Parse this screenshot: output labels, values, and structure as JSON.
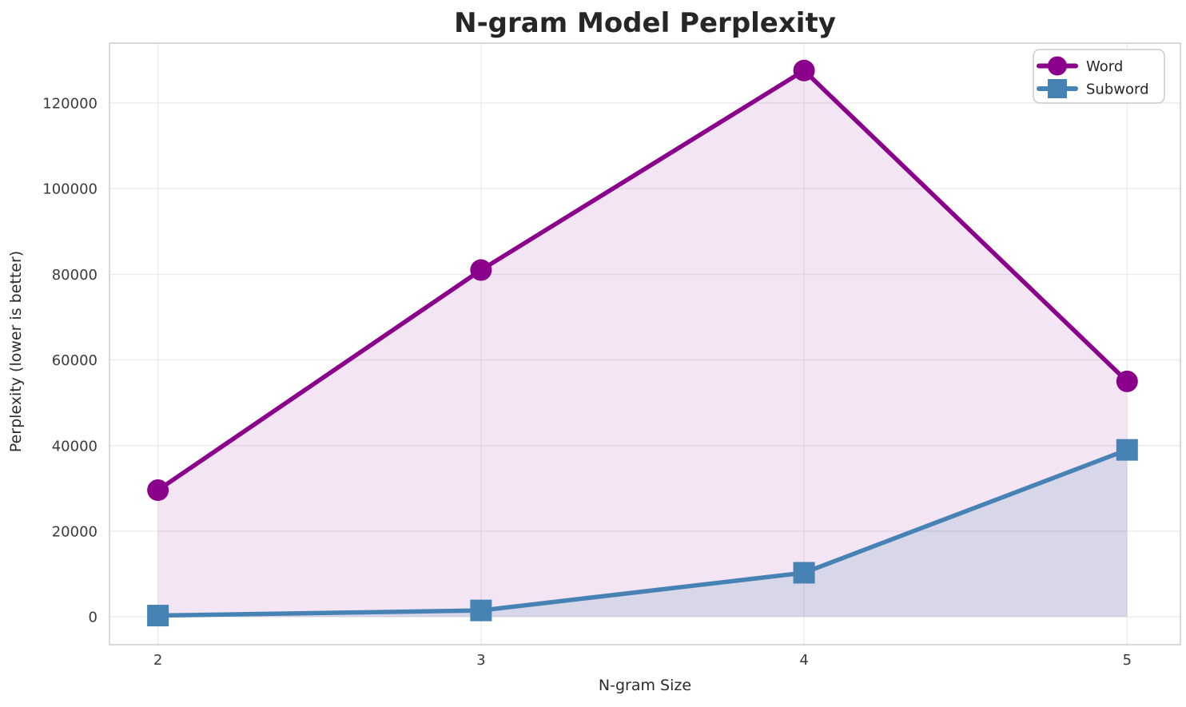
{
  "figure": {
    "background": "#ffffff"
  },
  "chart_data": {
    "type": "line",
    "title": "N-gram Model Perplexity",
    "xlabel": "N-gram Size",
    "ylabel": "Perplexity (lower is better)",
    "x": [
      2,
      3,
      4,
      5
    ],
    "series": [
      {
        "name": "Word",
        "values": [
          29600,
          81000,
          127600,
          55000
        ],
        "color": "#8B008B",
        "marker": "circle",
        "fill_opacity": 0.1
      },
      {
        "name": "Subword",
        "values": [
          300,
          1500,
          10300,
          39000
        ],
        "color": "#4682B4",
        "marker": "square",
        "fill_opacity": 0.15
      }
    ],
    "xticks": [
      2,
      3,
      4,
      5
    ],
    "xtick_labels": [
      "2",
      "3",
      "4",
      "5"
    ],
    "yticks": [
      0,
      20000,
      40000,
      60000,
      80000,
      100000,
      120000
    ],
    "ytick_labels": [
      "0",
      "20000",
      "40000",
      "60000",
      "80000",
      "100000",
      "120000"
    ],
    "xlim": [
      1.85,
      5.165
    ],
    "ylim": [
      -6500,
      134000
    ],
    "grid": true,
    "area_fill_baseline": 0,
    "legend": {
      "position": "upper right",
      "entries": [
        "Word",
        "Subword"
      ]
    }
  },
  "style_colors": {
    "background": "#ffffff",
    "grid": "#ececec",
    "spine": "#c9c9c9",
    "title_text": "#262626",
    "axis_text": "#2b2b2b",
    "tick_text": "#3a3a3a",
    "legend_border": "#cccccc",
    "legend_background": "#ffffff"
  }
}
